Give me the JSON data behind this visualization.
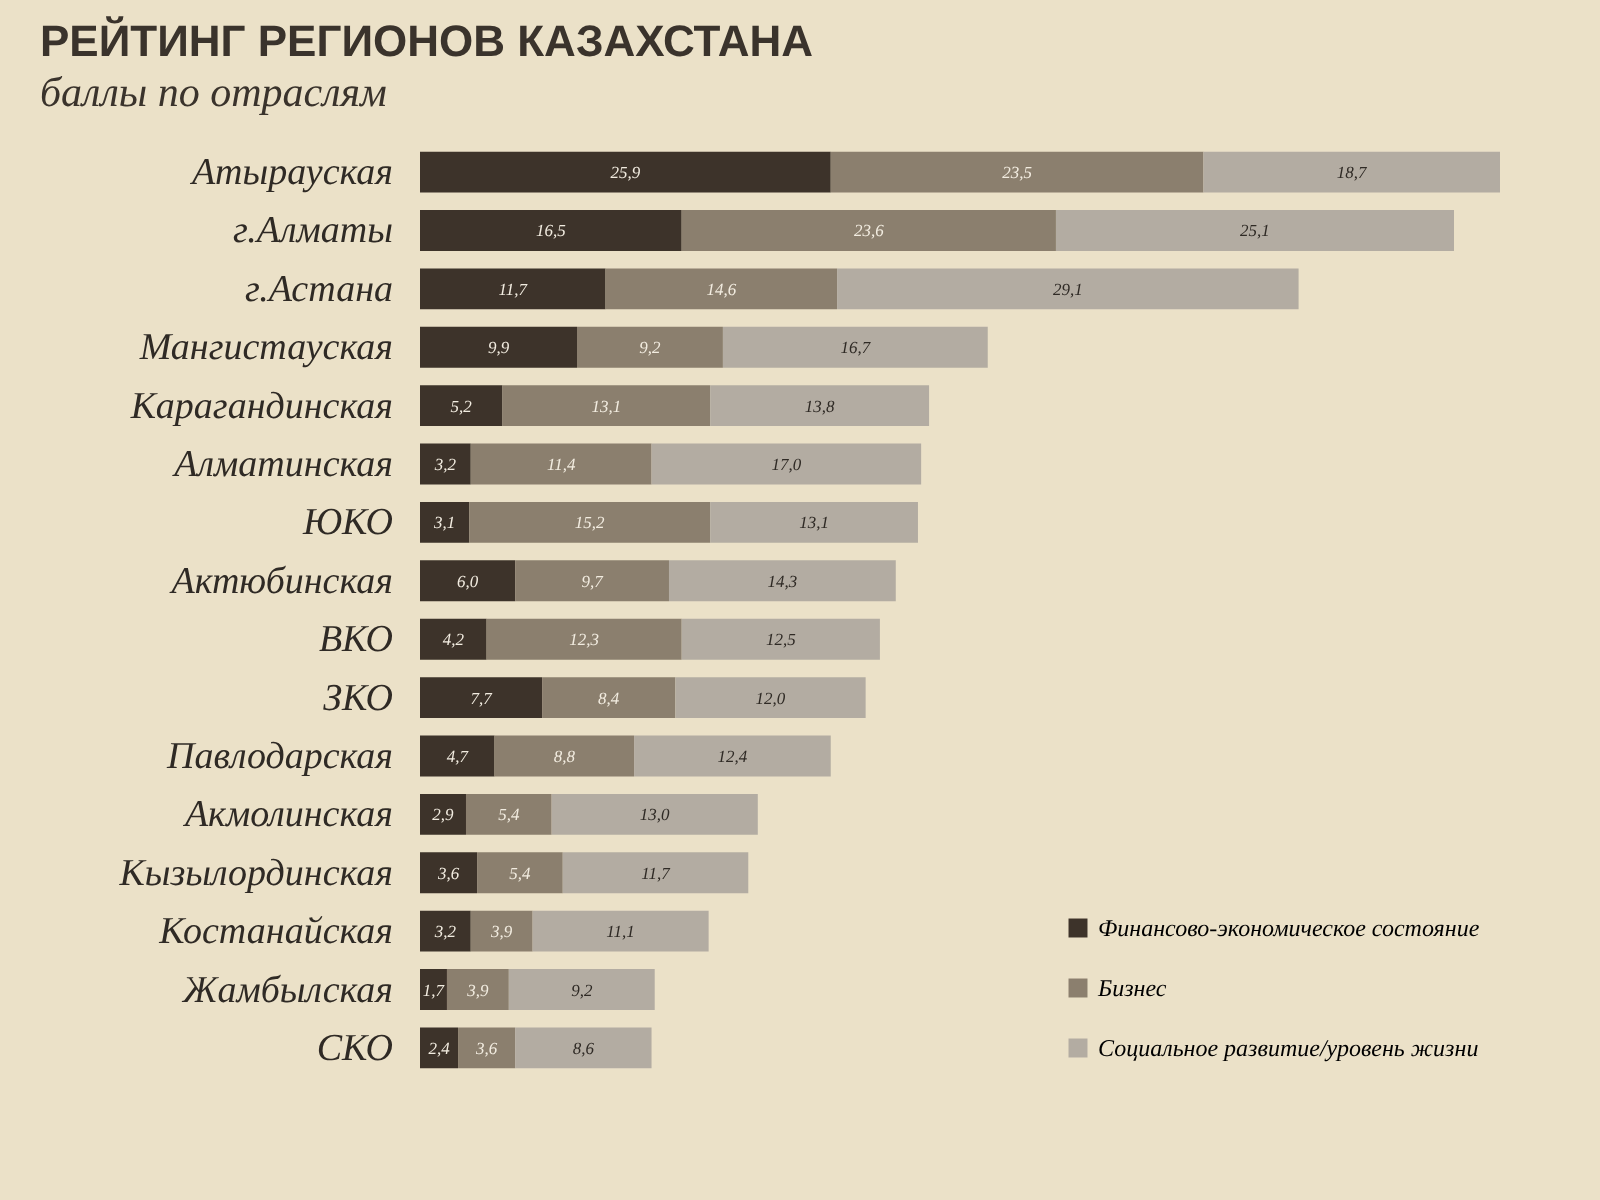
{
  "chart_data": {
    "type": "bar",
    "orientation": "horizontal",
    "stacked": true,
    "title": "РЕЙТИНГ РЕГИОНОВ КАЗАХСТАНА",
    "subtitle": "баллы по отраслям",
    "categories": [
      "Атырауская",
      "г.Алматы",
      "г.Астана",
      "Мангистауская",
      "Карагандинская",
      "Алматинская",
      "ЮКО",
      "Актюбинская",
      "ВКО",
      "ЗКО",
      "Павлодарская",
      "Акмолинская",
      "Кызылординская",
      "Костанайская",
      "Жамбылская",
      "СКО"
    ],
    "series": [
      {
        "name": "Финансово-экономическое состояние",
        "color": "#3d332a",
        "values": [
          25.9,
          16.5,
          11.7,
          9.9,
          5.2,
          3.2,
          3.1,
          6.0,
          4.2,
          7.7,
          4.7,
          2.9,
          3.6,
          3.2,
          1.7,
          2.4
        ],
        "value_labels": [
          "25,9",
          "16,5",
          "11,7",
          "9,9",
          "5,2",
          "3,2",
          "3,1",
          "6,0",
          "4,2",
          "7,7",
          "4,7",
          "2,9",
          "3,6",
          "3,2",
          "1,7",
          "2,4"
        ]
      },
      {
        "name": "Бизнес",
        "color": "#8b7f6e",
        "values": [
          23.5,
          23.6,
          14.6,
          9.2,
          13.1,
          11.4,
          15.2,
          9.7,
          12.3,
          8.4,
          8.8,
          5.4,
          5.4,
          3.9,
          3.9,
          3.6
        ],
        "value_labels": [
          "23,5",
          "23,6",
          "14,6",
          "9,2",
          "13,1",
          "11,4",
          "15,2",
          "9,7",
          "12,3",
          "8,4",
          "8,8",
          "5,4",
          "5,4",
          "3,9",
          "3,9",
          "3,6"
        ]
      },
      {
        "name": "Социальное развитие/уровень жизни",
        "color": "#b3aca2",
        "values": [
          18.7,
          25.1,
          29.1,
          16.7,
          13.8,
          17.0,
          13.1,
          14.3,
          12.5,
          12.0,
          12.4,
          13.0,
          11.7,
          11.1,
          9.2,
          8.6
        ],
        "value_labels": [
          "18,7",
          "25,1",
          "29,1",
          "16,7",
          "13,8",
          "17,0",
          "13,1",
          "14,3",
          "12,5",
          "12,0",
          "12,4",
          "13,0",
          "11,7",
          "11,1",
          "9,2",
          "8,6"
        ]
      }
    ],
    "legend": "bottom right"
  }
}
